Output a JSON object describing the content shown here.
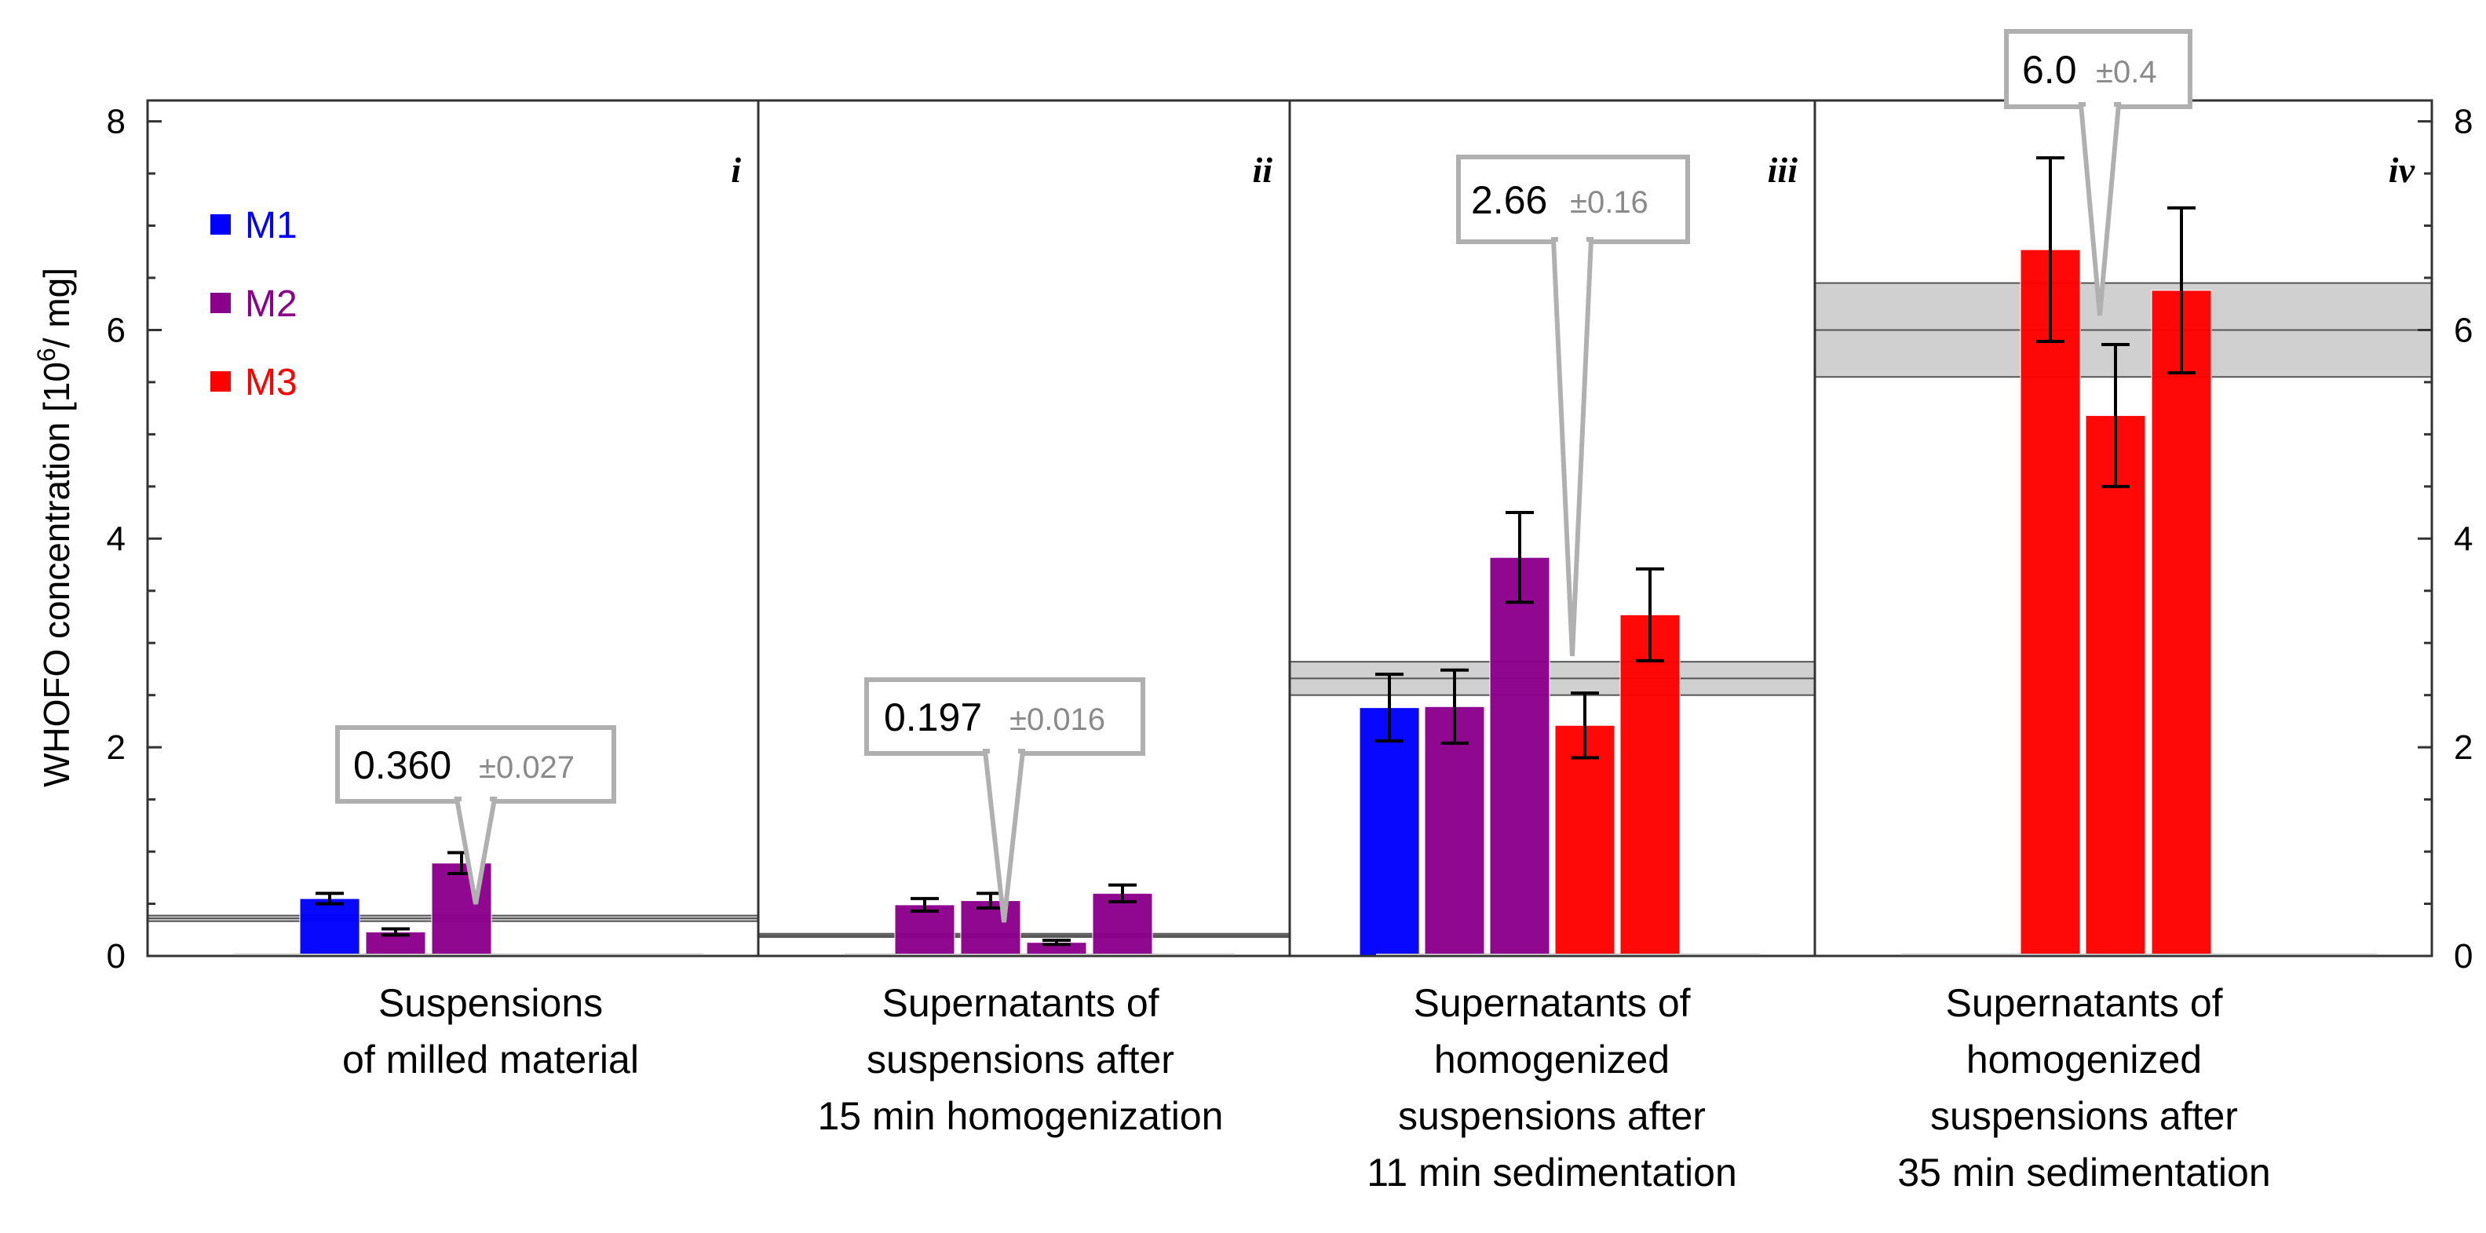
{
  "chart_data": {
    "type": "bar",
    "ylabel": "WHOFO concentration [10^6/ mg]",
    "ylabel_main": "WHOFO concentration [10",
    "ylabel_sup": "6",
    "ylabel_tail": "/ mg]",
    "ylim": [
      0,
      8.2
    ],
    "yticks": [
      0,
      2,
      4,
      6,
      8
    ],
    "colors": {
      "M1": "#0000ff",
      "M2": "#8b008b",
      "M3": "#ff0000"
    },
    "legend": [
      {
        "name": "M1",
        "color": "#0000ff"
      },
      {
        "name": "M2",
        "color": "#8b008b"
      },
      {
        "name": "M3",
        "color": "#ff0000"
      }
    ],
    "panels": [
      {
        "id": "i",
        "caption": [
          "Suspensions",
          "of milled material"
        ],
        "mean": 0.36,
        "mean_label": "0.360",
        "band": 0.027,
        "err_label": "±0.027",
        "bars": [
          {
            "material": "M1",
            "value": 0.55,
            "error": 0.05
          },
          {
            "material": "M2",
            "value": 0.23,
            "error": 0.03
          },
          {
            "material": "M2",
            "value": 0.89,
            "error": 0.1
          }
        ]
      },
      {
        "id": "ii",
        "caption": [
          "Supernatants of",
          "suspensions after",
          "15 min homogenization"
        ],
        "mean": 0.197,
        "mean_label": "0.197",
        "band": 0.016,
        "err_label": "±0.016",
        "bars": [
          {
            "material": "M2",
            "value": 0.49,
            "error": 0.06
          },
          {
            "material": "M2",
            "value": 0.53,
            "error": 0.07
          },
          {
            "material": "M2",
            "value": 0.13,
            "error": 0.02
          },
          {
            "material": "M2",
            "value": 0.6,
            "error": 0.08
          }
        ]
      },
      {
        "id": "iii",
        "caption": [
          "Supernatants of",
          "homogenized",
          "suspensions after",
          "11 min sedimentation"
        ],
        "mean": 2.66,
        "mean_label": "2.66",
        "band": 0.16,
        "err_label": "±0.16",
        "bars": [
          {
            "material": "M1",
            "value": 2.38,
            "error": 0.32
          },
          {
            "material": "M2",
            "value": 2.39,
            "error": 0.35
          },
          {
            "material": "M2",
            "value": 3.82,
            "error": 0.43
          },
          {
            "material": "M3",
            "value": 2.21,
            "error": 0.31
          },
          {
            "material": "M3",
            "value": 3.27,
            "error": 0.44
          }
        ]
      },
      {
        "id": "iv",
        "caption": [
          "Supernatants of",
          "homogenized",
          "suspensions after",
          "35 min sedimentation"
        ],
        "mean": 6.0,
        "mean_label": "6.0",
        "band": 0.45,
        "err_label": "±0.4",
        "bars": [
          {
            "material": "M3",
            "value": 6.77,
            "error": 0.88
          },
          {
            "material": "M3",
            "value": 5.18,
            "error": 0.68
          },
          {
            "material": "M3",
            "value": 6.38,
            "error": 0.79
          }
        ]
      }
    ]
  }
}
